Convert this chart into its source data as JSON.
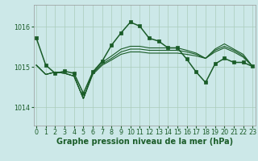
{
  "background_color": "#cce8e8",
  "grid_color": "#aaccbb",
  "line_color": "#1a5c28",
  "xlabel": "Graphe pression niveau de la mer (hPa)",
  "xlabel_fontsize": 7.0,
  "tick_fontsize": 5.8,
  "yticks": [
    1014,
    1015,
    1016
  ],
  "xticks": [
    0,
    1,
    2,
    3,
    4,
    5,
    6,
    7,
    8,
    9,
    10,
    11,
    12,
    13,
    14,
    15,
    16,
    17,
    18,
    19,
    20,
    21,
    22,
    23
  ],
  "ylim": [
    1013.55,
    1016.55
  ],
  "xlim": [
    -0.3,
    23.3
  ],
  "series": [
    [
      1015.72,
      1015.05,
      1014.85,
      1014.9,
      1014.85,
      1014.35,
      1014.88,
      1015.15,
      1015.55,
      1015.85,
      1016.12,
      1016.02,
      1015.72,
      1015.65,
      1015.48,
      1015.48,
      1015.2,
      1014.88,
      1014.62,
      1015.08,
      1015.22,
      1015.12,
      1015.12,
      1015.02
    ],
    [
      1015.05,
      1014.82,
      1014.88,
      1014.85,
      1014.78,
      1014.22,
      1014.82,
      1015.05,
      1015.18,
      1015.32,
      1015.38,
      1015.38,
      1015.35,
      1015.35,
      1015.35,
      1015.35,
      1015.32,
      1015.28,
      1015.22,
      1015.38,
      1015.48,
      1015.38,
      1015.25,
      1015.02
    ],
    [
      1015.05,
      1014.82,
      1014.88,
      1014.85,
      1014.78,
      1014.22,
      1014.85,
      1015.08,
      1015.22,
      1015.38,
      1015.45,
      1015.45,
      1015.42,
      1015.42,
      1015.42,
      1015.42,
      1015.38,
      1015.32,
      1015.22,
      1015.42,
      1015.52,
      1015.42,
      1015.28,
      1015.02
    ],
    [
      1015.05,
      1014.82,
      1014.88,
      1014.85,
      1014.78,
      1014.22,
      1014.88,
      1015.12,
      1015.28,
      1015.45,
      1015.52,
      1015.52,
      1015.48,
      1015.48,
      1015.48,
      1015.48,
      1015.42,
      1015.35,
      1015.22,
      1015.45,
      1015.58,
      1015.45,
      1015.32,
      1015.02
    ]
  ],
  "linewidths": [
    1.1,
    0.8,
    0.8,
    0.8
  ],
  "has_markers": [
    true,
    false,
    false,
    false
  ],
  "marker_size": 2.2
}
